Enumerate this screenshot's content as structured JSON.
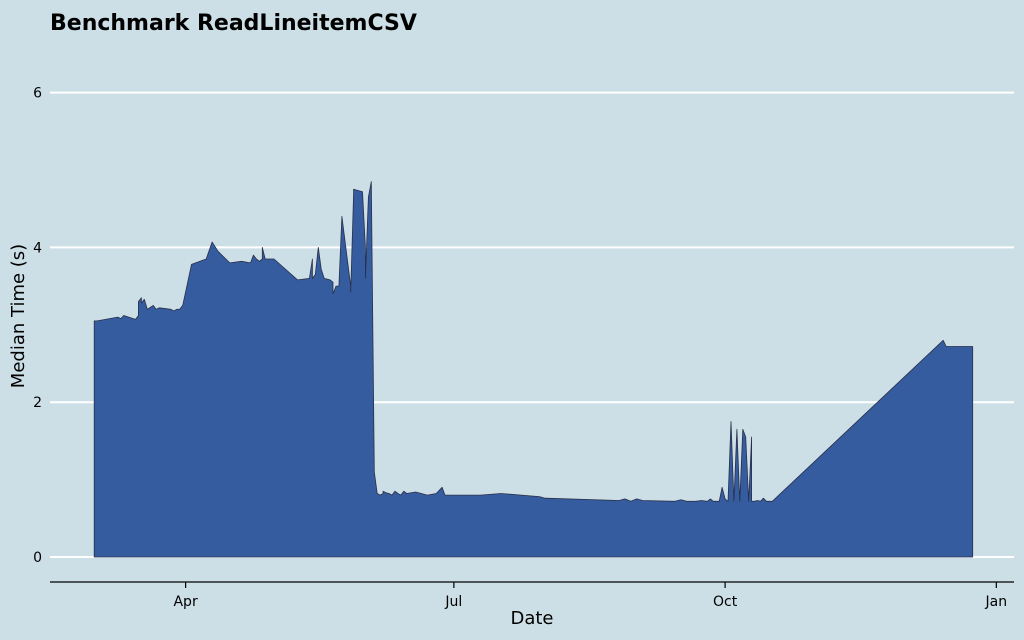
{
  "chart_data": {
    "type": "area",
    "title": "Benchmark ReadLineitemCSV",
    "xlabel": "Date",
    "ylabel": "Median Time (s)",
    "ylim": [
      0,
      6.6
    ],
    "xlim": [
      "2020-02-15",
      "2021-01-07"
    ],
    "x_ticks": [
      {
        "date": "2020-04-01",
        "label": "Apr"
      },
      {
        "date": "2020-07-01",
        "label": "Jul"
      },
      {
        "date": "2020-10-01",
        "label": "Oct"
      },
      {
        "date": "2021-01-01",
        "label": "Jan"
      }
    ],
    "y_ticks": [
      0,
      2,
      4,
      6
    ],
    "grid": "horizontal",
    "colors": {
      "background": "#cddfe6",
      "fill": "#355c9e",
      "outline": "#2a2f4a",
      "grid": "#ffffff"
    },
    "series": [
      {
        "x": [
          "2020-03-01",
          "2020-03-02",
          "2020-03-09",
          "2020-03-10",
          "2020-03-11",
          "2020-03-15",
          "2020-03-16",
          "2020-03-16",
          "2020-03-17",
          "2020-03-17",
          "2020-03-18",
          "2020-03-19",
          "2020-03-21",
          "2020-03-22",
          "2020-03-23",
          "2020-03-27",
          "2020-03-28",
          "2020-03-29",
          "2020-03-30",
          "2020-03-31",
          "2020-04-03",
          "2020-04-08",
          "2020-04-10",
          "2020-04-12",
          "2020-04-16",
          "2020-04-20",
          "2020-04-23",
          "2020-04-24",
          "2020-04-25",
          "2020-04-26",
          "2020-04-27",
          "2020-04-27",
          "2020-04-28",
          "2020-05-01",
          "2020-05-09",
          "2020-05-13",
          "2020-05-14",
          "2020-05-14",
          "2020-05-15",
          "2020-05-16",
          "2020-05-17",
          "2020-05-18",
          "2020-05-20",
          "2020-05-21",
          "2020-05-21",
          "2020-05-22",
          "2020-05-23",
          "2020-05-24",
          "2020-05-27",
          "2020-05-27",
          "2020-05-28",
          "2020-05-28",
          "2020-05-31",
          "2020-06-01",
          "2020-06-01",
          "2020-06-02",
          "2020-06-03",
          "2020-06-04",
          "2020-06-05",
          "2020-06-06",
          "2020-06-07",
          "2020-06-07",
          "2020-06-08",
          "2020-06-09",
          "2020-06-10",
          "2020-06-11",
          "2020-06-12",
          "2020-06-13",
          "2020-06-14",
          "2020-06-15",
          "2020-06-18",
          "2020-06-20",
          "2020-06-22",
          "2020-06-25",
          "2020-06-27",
          "2020-06-28",
          "2020-07-03",
          "2020-07-07",
          "2020-07-10",
          "2020-07-17",
          "2020-07-30",
          "2020-08-01",
          "2020-08-26",
          "2020-08-28",
          "2020-08-30",
          "2020-09-01",
          "2020-09-03",
          "2020-09-14",
          "2020-09-16",
          "2020-09-18",
          "2020-09-21",
          "2020-09-23",
          "2020-09-25",
          "2020-09-26",
          "2020-09-27",
          "2020-09-28",
          "2020-09-29",
          "2020-09-30",
          "2020-10-01",
          "2020-10-02",
          "2020-10-03",
          "2020-10-04",
          "2020-10-05",
          "2020-10-06",
          "2020-10-07",
          "2020-10-08",
          "2020-10-09",
          "2020-10-10",
          "2020-10-10",
          "2020-10-11",
          "2020-10-12",
          "2020-10-13",
          "2020-10-14",
          "2020-10-15",
          "2020-10-16",
          "2020-10-17",
          "2020-12-14",
          "2020-12-15",
          "2020-12-24"
        ],
        "y": [
          3.05,
          3.05,
          3.1,
          3.08,
          3.12,
          3.07,
          3.12,
          3.3,
          3.35,
          3.28,
          3.33,
          3.2,
          3.25,
          3.2,
          3.22,
          3.2,
          3.18,
          3.2,
          3.2,
          3.25,
          3.78,
          3.85,
          4.07,
          3.95,
          3.8,
          3.82,
          3.8,
          3.9,
          3.85,
          3.82,
          3.85,
          4.0,
          3.85,
          3.85,
          3.58,
          3.6,
          3.85,
          3.6,
          3.65,
          4.0,
          3.72,
          3.6,
          3.58,
          3.55,
          3.4,
          3.5,
          3.5,
          4.4,
          3.5,
          3.42,
          4.7,
          4.75,
          4.72,
          4.0,
          3.6,
          4.65,
          4.85,
          1.1,
          0.82,
          0.8,
          0.82,
          0.85,
          0.83,
          0.82,
          0.8,
          0.85,
          0.82,
          0.8,
          0.85,
          0.82,
          0.84,
          0.82,
          0.8,
          0.82,
          0.9,
          0.8,
          0.8,
          0.8,
          0.8,
          0.82,
          0.78,
          0.76,
          0.73,
          0.75,
          0.72,
          0.75,
          0.73,
          0.72,
          0.74,
          0.72,
          0.72,
          0.73,
          0.72,
          0.75,
          0.72,
          0.72,
          0.72,
          0.9,
          0.75,
          0.72,
          1.75,
          0.72,
          1.65,
          0.72,
          1.65,
          1.55,
          0.72,
          1.55,
          0.72,
          0.72,
          0.73,
          0.72,
          0.76,
          0.72,
          0.72,
          0.72,
          2.8,
          2.72,
          2.72
        ]
      }
    ]
  }
}
